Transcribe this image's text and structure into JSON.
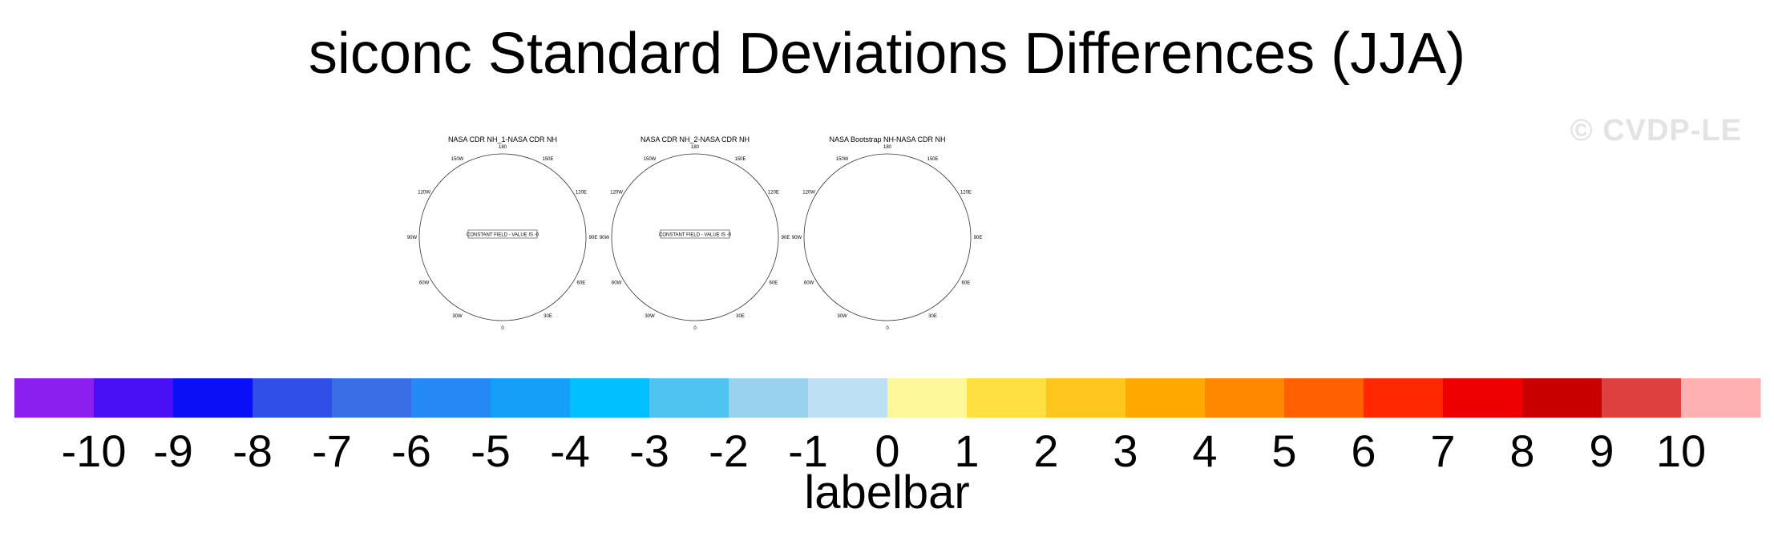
{
  "title": "siconc Standard Deviations Differences (JJA)",
  "watermark": "© CVDP-LE",
  "colors": {
    "land": "#c0c0c0",
    "ocean": "#ffffff",
    "coast": "#444444"
  },
  "panels": [
    {
      "title": "NASA CDR NH_1-NASA CDR NH",
      "annotation": "CONSTANT FIELD - VALUE IS -0",
      "constant": true
    },
    {
      "title": "NASA CDR NH_2-NASA CDR NH",
      "annotation": "CONSTANT FIELD - VALUE IS -0",
      "constant": true
    },
    {
      "title": "NASA Bootstrap NH-NASA CDR NH",
      "annotation": "",
      "constant": false
    }
  ],
  "lon_labels": [
    "180",
    "150E",
    "120E",
    "90E",
    "60E",
    "30E",
    "0",
    "30W",
    "60W",
    "90W",
    "120W",
    "150W"
  ],
  "colorbar": {
    "label": "labelbar",
    "tick_labels": [
      "-10",
      "-9",
      "-8",
      "-7",
      "-6",
      "-5",
      "-4",
      "-3",
      "-2",
      "-1",
      "0",
      "1",
      "2",
      "3",
      "4",
      "5",
      "6",
      "7",
      "8",
      "9",
      "10"
    ],
    "colors": [
      "#8a1ff0",
      "#4a10f5",
      "#0a10f5",
      "#2f4fe8",
      "#3a6ee6",
      "#2488f5",
      "#14a0f8",
      "#00c0ff",
      "#50c4f0",
      "#98d2ee",
      "#bee0f5",
      "#fff89a",
      "#ffe040",
      "#ffc61e",
      "#ffa800",
      "#ff8800",
      "#ff6000",
      "#ff2800",
      "#ee0000",
      "#c80000",
      "#de4040",
      "#ffb0b0"
    ]
  }
}
